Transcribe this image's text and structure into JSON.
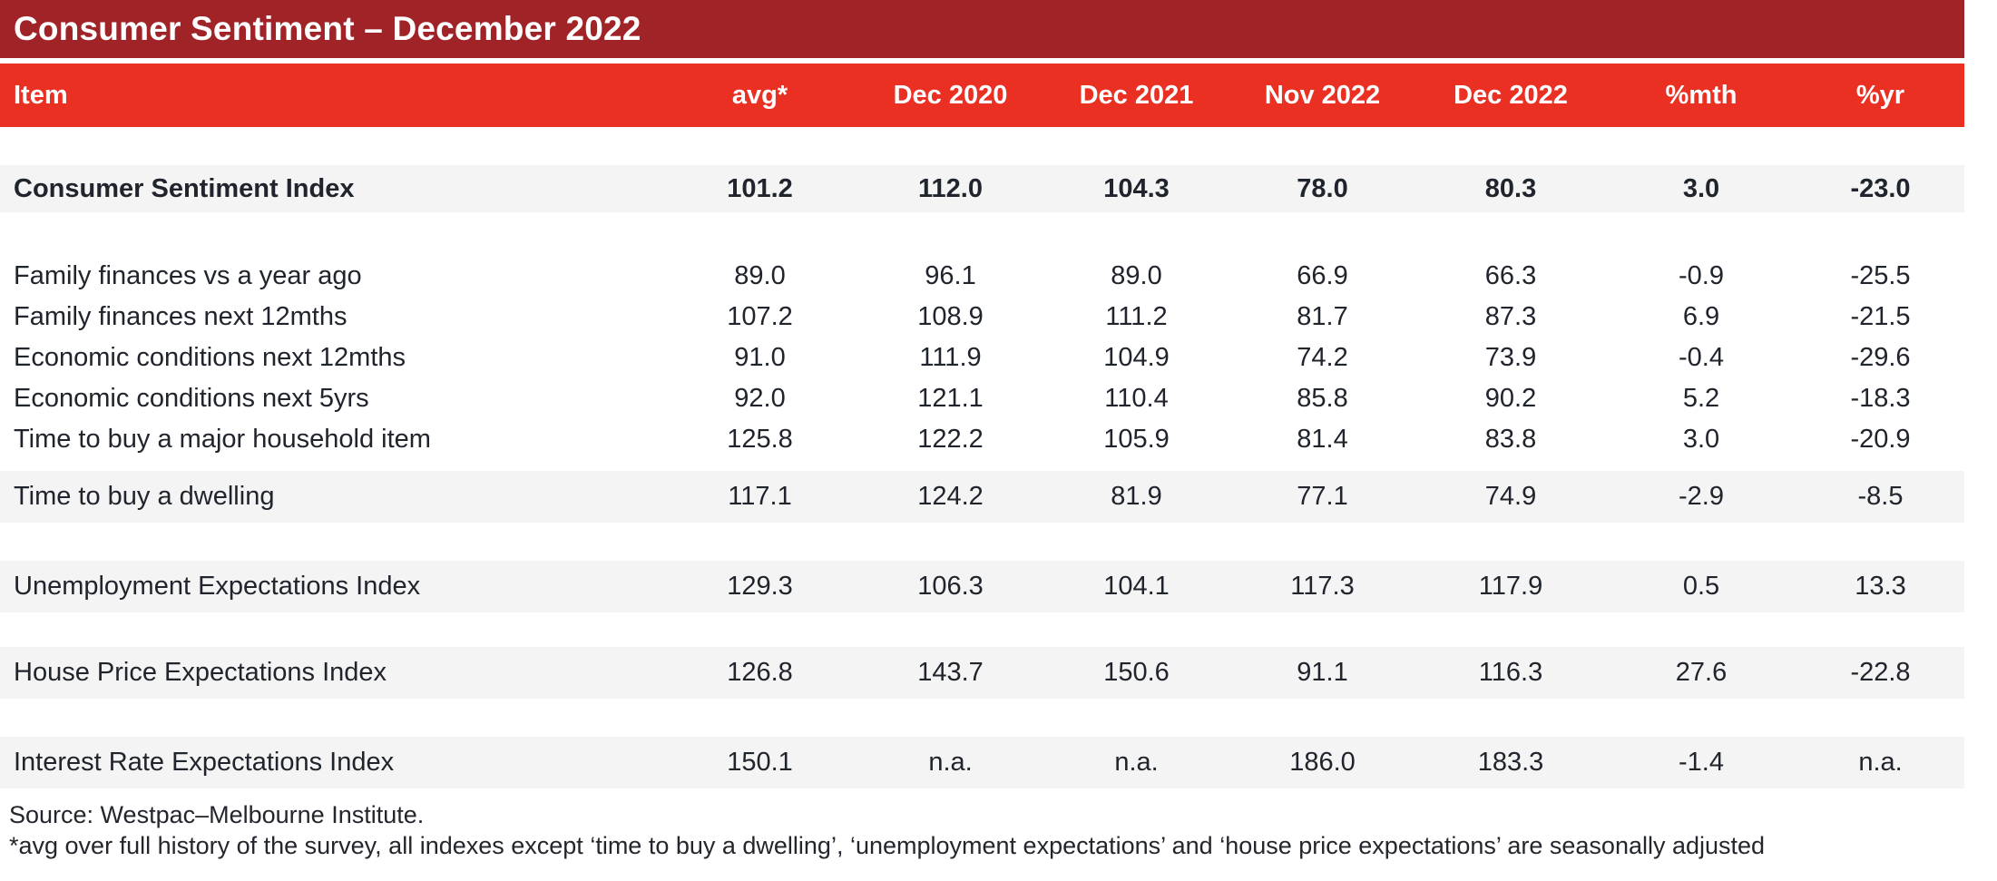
{
  "colors": {
    "title_bar": "#a02328",
    "header_bar": "#ea2f23",
    "row_shade": "#f4f4f4"
  },
  "title": "Consumer Sentiment – December 2022",
  "table": {
    "columns": [
      "Item",
      "avg*",
      "Dec 2020",
      "Dec 2021",
      "Nov 2022",
      "Dec 2022",
      "%mth",
      "%yr"
    ],
    "sections": [
      {
        "shaded": true,
        "bold": true,
        "rows": [
          {
            "label": "Consumer Sentiment Index",
            "values": [
              "101.2",
              "112.0",
              "104.3",
              "78.0",
              "80.3",
              "3.0",
              "-23.0"
            ]
          }
        ]
      },
      {
        "shaded": false,
        "bold": false,
        "rows": [
          {
            "label": "Family finances vs a year ago",
            "values": [
              "89.0",
              "96.1",
              "89.0",
              "66.9",
              "66.3",
              "-0.9",
              "-25.5"
            ]
          },
          {
            "label": "Family finances next 12mths",
            "values": [
              "107.2",
              "108.9",
              "111.2",
              "81.7",
              "87.3",
              "6.9",
              "-21.5"
            ]
          },
          {
            "label": "Economic conditions next 12mths",
            "values": [
              "91.0",
              "111.9",
              "104.9",
              "74.2",
              "73.9",
              "-0.4",
              "-29.6"
            ]
          },
          {
            "label": "Economic conditions next 5yrs",
            "values": [
              "92.0",
              "121.1",
              "110.4",
              "85.8",
              "90.2",
              "5.2",
              "-18.3"
            ]
          },
          {
            "label": "Time to buy a major household item",
            "values": [
              "125.8",
              "122.2",
              "105.9",
              "81.4",
              "83.8",
              "3.0",
              "-20.9"
            ]
          }
        ]
      },
      {
        "shaded": true,
        "bold": false,
        "rows": [
          {
            "label": "Time to buy a dwelling",
            "values": [
              "117.1",
              "124.2",
              "81.9",
              "77.1",
              "74.9",
              "-2.9",
              "-8.5"
            ]
          }
        ]
      },
      {
        "shaded": true,
        "bold": false,
        "rows": [
          {
            "label": "Unemployment Expectations Index",
            "values": [
              "129.3",
              "106.3",
              "104.1",
              "117.3",
              "117.9",
              "0.5",
              "13.3"
            ]
          }
        ]
      },
      {
        "shaded": true,
        "bold": false,
        "rows": [
          {
            "label": "House Price Expectations Index",
            "values": [
              "126.8",
              "143.7",
              "150.6",
              "91.1",
              "116.3",
              "27.6",
              "-22.8"
            ]
          }
        ]
      },
      {
        "shaded": true,
        "bold": false,
        "rows": [
          {
            "label": "Interest Rate Expectations Index",
            "values": [
              "150.1",
              "n.a.",
              "n.a.",
              "186.0",
              "183.3",
              "-1.4",
              "n.a."
            ]
          }
        ]
      }
    ]
  },
  "footer": {
    "source": "Source: Westpac–Melbourne Institute.",
    "note": "*avg over full history of the survey, all indexes except ‘time to buy a dwelling’, ‘unemployment expectations’ and ‘house price expectations’ are seasonally adjusted"
  }
}
